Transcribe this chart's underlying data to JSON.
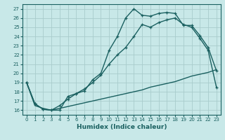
{
  "xlabel": "Humidex (Indice chaleur)",
  "ylabel": "",
  "xlim": [
    -0.5,
    23.5
  ],
  "ylim": [
    15.5,
    27.5
  ],
  "xtick_labels": [
    "0",
    "1",
    "2",
    "3",
    "4",
    "5",
    "6",
    "7",
    "8",
    "9",
    "10",
    "11",
    "12",
    "13",
    "14",
    "15",
    "16",
    "17",
    "18",
    "19",
    "20",
    "21",
    "22",
    "23"
  ],
  "ytick_labels": [
    "16",
    "17",
    "18",
    "19",
    "20",
    "21",
    "22",
    "23",
    "24",
    "25",
    "26",
    "27"
  ],
  "background_color": "#c8e8e8",
  "grid_color": "#a8cccc",
  "line_color": "#1a6060",
  "line1": {
    "x": [
      0,
      1,
      2,
      3,
      4,
      5,
      6,
      7,
      8,
      9,
      10,
      11,
      12,
      13,
      14,
      15,
      16,
      17,
      18,
      19,
      20,
      21,
      22,
      23
    ],
    "y": [
      19,
      16.7,
      16.1,
      16.0,
      16.0,
      17.5,
      17.8,
      18.1,
      19.3,
      20.0,
      22.5,
      24.0,
      26.0,
      27.0,
      26.3,
      26.2,
      26.5,
      26.6,
      26.5,
      25.2,
      25.2,
      24.1,
      22.8,
      20.3
    ]
  },
  "line2": {
    "x": [
      0,
      1,
      2,
      3,
      4,
      5,
      6,
      7,
      8,
      9,
      10,
      11,
      12,
      13,
      14,
      15,
      16,
      17,
      18,
      19,
      20,
      21,
      22,
      23
    ],
    "y": [
      19,
      16.7,
      16.1,
      16.0,
      16.5,
      17.2,
      17.8,
      18.3,
      19.0,
      19.8,
      21.0,
      22.0,
      22.8,
      24.0,
      25.3,
      25.0,
      25.5,
      25.8,
      26.0,
      25.3,
      25.0,
      23.8,
      22.5,
      18.5
    ]
  },
  "line3": {
    "x": [
      0,
      1,
      2,
      3,
      4,
      5,
      6,
      7,
      8,
      9,
      10,
      11,
      12,
      13,
      14,
      15,
      16,
      17,
      18,
      19,
      20,
      21,
      22,
      23
    ],
    "y": [
      19,
      16.5,
      16.2,
      16.0,
      16.2,
      16.4,
      16.6,
      16.8,
      17.0,
      17.2,
      17.4,
      17.6,
      17.8,
      18.0,
      18.2,
      18.5,
      18.7,
      18.9,
      19.1,
      19.4,
      19.7,
      19.9,
      20.1,
      20.4
    ]
  }
}
